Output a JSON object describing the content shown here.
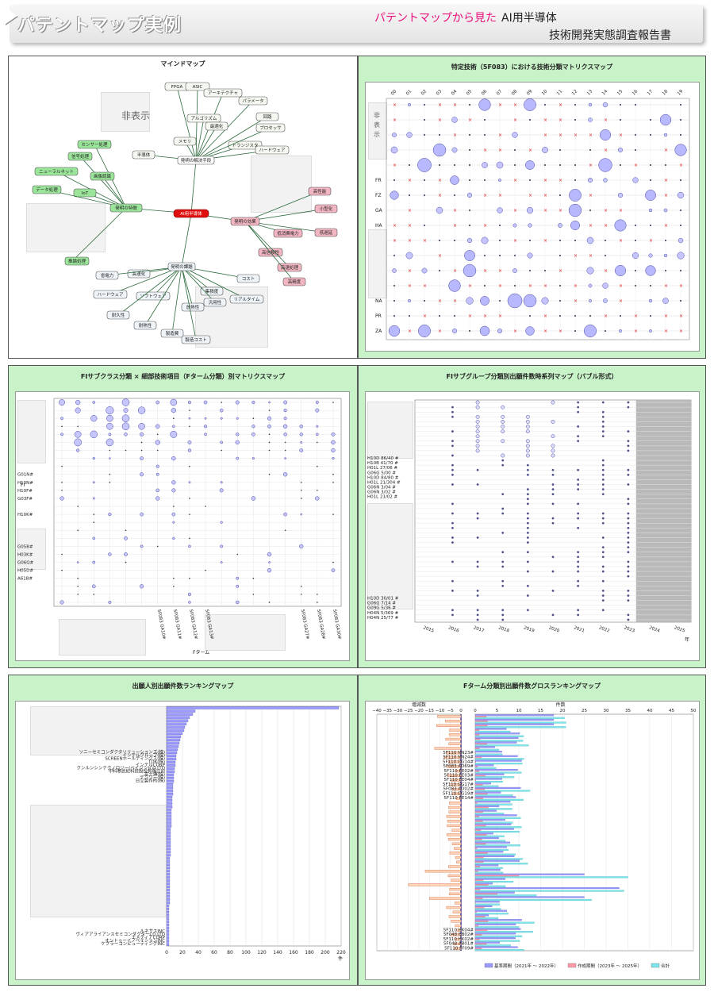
{
  "header": {
    "title": "パテントマップ実例",
    "subtitle_pink": "パテントマップから見た",
    "subtitle_topic": "AI用半導体",
    "subtitle_report": "技術開発実態調査報告書"
  },
  "panels": {
    "mindmap": {
      "title": "マインドマップ",
      "hidden_label": "非表示",
      "center": "AI用半導体",
      "branch_means": "発明の解決手段",
      "branch_issue": "発明の課題",
      "branch_effect": "発明の効果",
      "branch_feature": "発明の特徴",
      "nodes_means": [
        "FPGA",
        "ASIC",
        "アーキテクチャ",
        "パラメータ",
        "アルゴリズム",
        "最適化",
        "回路",
        "トランジスタ",
        "メモリ",
        "半導体",
        "プロセッサ",
        "ハードウェア"
      ],
      "nodes_feature": [
        "センサー処理",
        "信号処理",
        "画像認識",
        "ニューラルネット",
        "IoT",
        "データ処理",
        "推論処理"
      ],
      "nodes_issue": [
        "高速化",
        "省電力",
        "ハードウェア",
        "ソフトウェア",
        "耐久性",
        "耐熱性",
        "放熱性",
        "集積度",
        "コスト",
        "製造費",
        "製造コスト",
        "汎用性",
        "リアルタイム"
      ],
      "nodes_effect": [
        "高性能",
        "小型化",
        "低消費電力",
        "低遅延",
        "高信頼性",
        "高速処理",
        "高精度"
      ]
    },
    "matrix_tech": {
      "title": "特定技術（5F083）における技術分類マトリクスマップ",
      "x_labels": [
        "00",
        "01",
        "02",
        "03",
        "04",
        "05",
        "06",
        "07",
        "08",
        "09",
        "10",
        "11",
        "12",
        "13",
        "14",
        "15",
        "16",
        "17",
        "18",
        "19"
      ],
      "hidden_label": "非表示",
      "y_labels": [
        "FR",
        "FZ",
        "GA",
        "HA",
        "NA",
        "PR",
        "ZA"
      ]
    },
    "fi_matrix": {
      "title": "FIサブクラス分類 × 細部技術項目（Fターム分類）別マトリクスマップ",
      "y_labels": [
        "G01N#",
        "H10N#",
        "H10F#",
        "G03F#",
        "H10K#",
        "G05B#",
        "H03K#",
        "G06Q#",
        "H05D#",
        "A61B#"
      ],
      "y_axis": "FI",
      "x_labels": [
        "5F083 GA10#",
        "5F083 GA11#",
        "5F083 GA12#",
        "5F083 GA13#",
        "5F083 GA27#",
        "5F083 GA28#",
        "5F083 GA30#"
      ],
      "x_axis": "Fターム"
    },
    "timeseries": {
      "title": "FIサブグループ分類別出願件数時系列マップ（バブル形式）",
      "y_labels": [
        "H10D 86/40 #",
        "H10B 41/70 #",
        "H01L 27/06 #",
        "G06G 5/00 #",
        "H10D 84/80 #",
        "H01L 21/304 #",
        "G06N 3/04 #",
        "G06N 3/02 #",
        "H01L 21/02 #"
      ],
      "y_labels_bottom": [
        "H10D 30/01 #",
        "G06G 7/14 #",
        "G09G 5/36 #",
        "H04N 5/369 #",
        "H04N 25/77 #"
      ],
      "x_labels": [
        "2015",
        "2016",
        "2017",
        "2018",
        "2019",
        "2020",
        "2021",
        "2022",
        "2023",
        "2024",
        "2025"
      ],
      "x_unit": "年"
    },
    "applicant": {
      "title": "出願人別出願件数ランキングマップ",
      "names": [
        "ソニーセミコンダクタソリューションズ(株)",
        "インテルグループ(株)",
        "SCREENホールディングス(株)",
        "TDK(株)",
        "インテルCORP",
        "クンルンシンテクノロジー(ベイジン)CO.LTD",
        "中科寒武紀科技股份有限公司",
        "富士通(株)",
        "デンソー(株)",
        "日立製作所(株)"
      ],
      "names_bottom": [
        "ルネサスINC",
        "ヴィアアライアンスセミコンダクターCO.LTD",
        "エメディアCORP",
        "オントゥーイノベイションINC",
        "ケブラーコンピューティングINC"
      ],
      "x_ticks": [
        "0",
        "20",
        "40",
        "60",
        "80",
        "100",
        "120",
        "140",
        "160",
        "180",
        "200",
        "220"
      ],
      "x_unit": "件"
    },
    "gross": {
      "title": "Fターム分類別出願件数グロスランキングマップ",
      "left_axis_title": "増減数",
      "right_axis_title": "件数",
      "left_ticks": [
        "−40",
        "−35",
        "−30",
        "−25",
        "−20",
        "−15",
        "−10",
        "−5",
        "0"
      ],
      "right_ticks": [
        "0",
        "5",
        "10",
        "15",
        "20",
        "25",
        "30",
        "35",
        "40",
        "45",
        "50"
      ],
      "labels": [
        "5F110 NN23#",
        "5F110 NN24#",
        "5F110 GG14#",
        "5F083 AD69#",
        "5F110 EE02#",
        "5F110 EE03#",
        "5F110 EE04#",
        "5F110 GG17#",
        "5F083 AD02#",
        "5F110 GG19#",
        "5F110 EE14#"
      ],
      "labels_bottom": [
        "5F110 HK04#",
        "5F048 BB02#",
        "5F110 HK02#",
        "5F048 AB01#",
        "5F110 FF09#"
      ],
      "legend": [
        "基準期間（2021年 〜 2022年）",
        "作成期間（2023年 〜 2025年）",
        "合計"
      ],
      "legend_colors": [
        "#9a9aff",
        "#ff9aa8",
        "#7ee6ea"
      ]
    }
  }
}
